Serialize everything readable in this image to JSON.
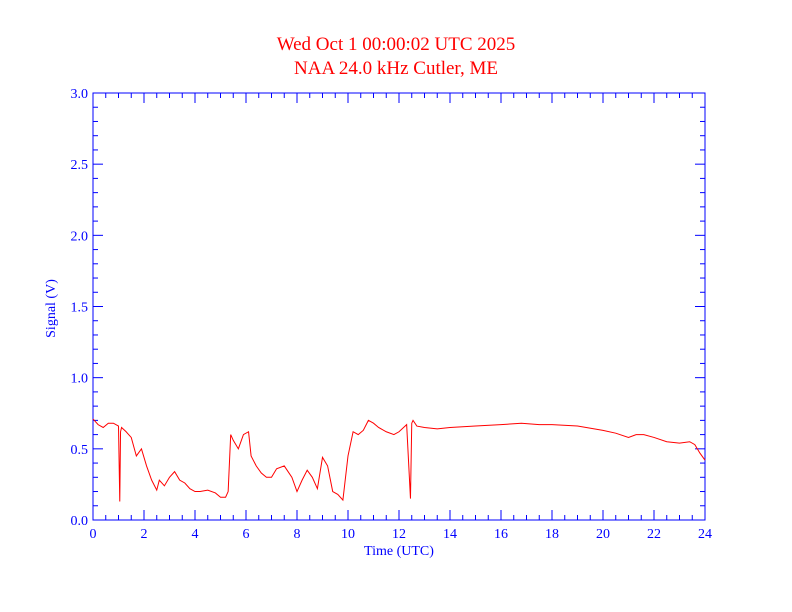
{
  "chart_data": {
    "type": "line",
    "title": "Wed Oct 1 00:00:02 UTC 2025",
    "subtitle": "NAA 24.0 kHz Cutler, ME",
    "xlabel": "Time (UTC)",
    "ylabel": "Signal (V)",
    "xlim": [
      0,
      24
    ],
    "ylim": [
      0,
      3.0
    ],
    "x_ticks": [
      "0",
      "2",
      "4",
      "6",
      "8",
      "10",
      "12",
      "14",
      "16",
      "18",
      "20",
      "22",
      "24"
    ],
    "y_ticks": [
      "0.0",
      "0.5",
      "1.0",
      "1.5",
      "2.0",
      "2.5",
      "3.0"
    ],
    "grid": false,
    "colors": {
      "axes": "#0000ff",
      "title": "#ff0000",
      "series": "#ff0000"
    },
    "series": [
      {
        "x": [
          0.0,
          0.2,
          0.4,
          0.6,
          0.8,
          1.0,
          1.05,
          1.08,
          1.12,
          1.3,
          1.5,
          1.7,
          1.9,
          2.1,
          2.3,
          2.5,
          2.6,
          2.8,
          3.0,
          3.2,
          3.4,
          3.6,
          3.8,
          4.0,
          4.2,
          4.5,
          4.8,
          5.0,
          5.2,
          5.3,
          5.4,
          5.5,
          5.7,
          5.9,
          6.1,
          6.2,
          6.4,
          6.6,
          6.8,
          7.0,
          7.2,
          7.5,
          7.8,
          8.0,
          8.2,
          8.4,
          8.6,
          8.8,
          9.0,
          9.2,
          9.4,
          9.6,
          9.8,
          10.0,
          10.2,
          10.4,
          10.6,
          10.8,
          11.0,
          11.2,
          11.5,
          11.8,
          12.0,
          12.3,
          12.45,
          12.5,
          12.55,
          12.7,
          13.0,
          13.5,
          14.0,
          15.0,
          16.0,
          16.8,
          17.5,
          18.0,
          19.0,
          20.0,
          20.5,
          21.0,
          21.3,
          21.6,
          22.0,
          22.5,
          23.0,
          23.4,
          23.6,
          23.8,
          24.0
        ],
        "y": [
          0.71,
          0.67,
          0.65,
          0.68,
          0.68,
          0.66,
          0.13,
          0.62,
          0.65,
          0.62,
          0.58,
          0.45,
          0.5,
          0.38,
          0.28,
          0.21,
          0.28,
          0.24,
          0.3,
          0.34,
          0.28,
          0.26,
          0.22,
          0.2,
          0.2,
          0.21,
          0.19,
          0.16,
          0.16,
          0.2,
          0.6,
          0.56,
          0.5,
          0.6,
          0.62,
          0.45,
          0.38,
          0.33,
          0.3,
          0.3,
          0.36,
          0.38,
          0.3,
          0.2,
          0.28,
          0.35,
          0.3,
          0.22,
          0.44,
          0.38,
          0.2,
          0.18,
          0.14,
          0.45,
          0.62,
          0.6,
          0.63,
          0.7,
          0.68,
          0.65,
          0.62,
          0.6,
          0.62,
          0.67,
          0.15,
          0.68,
          0.7,
          0.66,
          0.65,
          0.64,
          0.65,
          0.66,
          0.67,
          0.68,
          0.67,
          0.67,
          0.66,
          0.63,
          0.61,
          0.58,
          0.6,
          0.6,
          0.58,
          0.55,
          0.54,
          0.55,
          0.53,
          0.47,
          0.42
        ]
      }
    ]
  }
}
